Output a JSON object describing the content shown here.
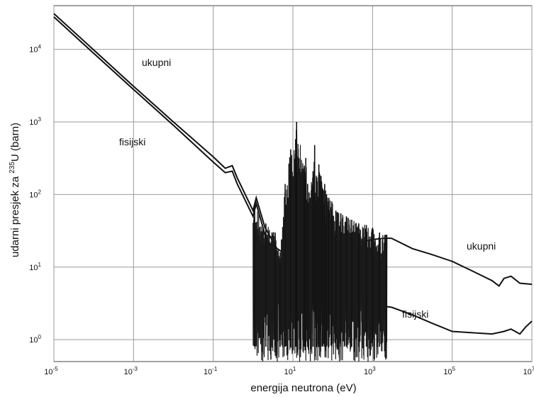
{
  "chart_data": {
    "type": "line",
    "title": "",
    "xlabel": "energija neutrona (eV)",
    "ylabel_prefix": "udarni presjek za ",
    "ylabel_isotope_mass": "235",
    "ylabel_suffix": "U (barn)",
    "x_scale": "log",
    "y_scale": "log",
    "xlim": [
      1e-05,
      10000000
    ],
    "ylim": [
      0.5,
      40000
    ],
    "grid": true,
    "legend": "none (inline annotations)",
    "x_ticks": [
      {
        "value": 1e-05,
        "base": "10",
        "exp": "-5"
      },
      {
        "value": 0.001,
        "base": "10",
        "exp": "-3"
      },
      {
        "value": 0.1,
        "base": "10",
        "exp": "-1"
      },
      {
        "value": 10,
        "base": "10",
        "exp": "1"
      },
      {
        "value": 1000,
        "base": "10",
        "exp": "3"
      },
      {
        "value": 100000,
        "base": "10",
        "exp": "5"
      },
      {
        "value": 10000000,
        "base": "10",
        "exp": "7"
      }
    ],
    "y_ticks": [
      {
        "value": 1,
        "base": "10",
        "exp": "0"
      },
      {
        "value": 10,
        "base": "10",
        "exp": "1"
      },
      {
        "value": 100,
        "base": "10",
        "exp": "2"
      },
      {
        "value": 1000,
        "base": "10",
        "exp": "3"
      },
      {
        "value": 10000,
        "base": "10",
        "exp": "4"
      }
    ],
    "annotations": {
      "upper_left": "ukupni",
      "lower_left": "fisijski",
      "upper_right": "ukupni",
      "lower_right": "fisijski"
    },
    "series": [
      {
        "name": "ukupni",
        "color": "#111111",
        "points": [
          [
            1e-05,
            31000
          ],
          [
            0.0001,
            9800
          ],
          [
            0.001,
            3100
          ],
          [
            0.01,
            1000
          ],
          [
            0.1,
            330
          ],
          [
            0.2,
            230
          ],
          [
            0.3,
            250
          ],
          [
            0.4,
            170
          ],
          [
            1,
            60
          ],
          [
            1.2,
            90
          ],
          [
            2,
            35
          ],
          [
            4,
            18
          ],
          [
            8,
            14
          ],
          [
            20,
            12
          ],
          [
            60,
            14
          ],
          [
            200,
            17
          ],
          [
            500,
            22
          ],
          [
            1000,
            24
          ],
          [
            2000,
            25
          ],
          [
            3000,
            25
          ],
          [
            10000,
            18
          ],
          [
            30000,
            15
          ],
          [
            100000,
            12
          ],
          [
            300000,
            9
          ],
          [
            1000000,
            6.5
          ],
          [
            1500000,
            5.5
          ],
          [
            2000000,
            7
          ],
          [
            3000000,
            7.5
          ],
          [
            5000000,
            6
          ],
          [
            10000000,
            5.8
          ]
        ]
      },
      {
        "name": "fisijski",
        "color": "#111111",
        "points": [
          [
            1e-05,
            28000
          ],
          [
            0.0001,
            8800
          ],
          [
            0.001,
            2800
          ],
          [
            0.01,
            900
          ],
          [
            0.1,
            280
          ],
          [
            0.2,
            200
          ],
          [
            0.3,
            210
          ],
          [
            0.4,
            140
          ],
          [
            1,
            50
          ],
          [
            1.2,
            75
          ],
          [
            2,
            28
          ],
          [
            4,
            10
          ],
          [
            8,
            6
          ],
          [
            20,
            5
          ],
          [
            60,
            4
          ],
          [
            200,
            3.5
          ],
          [
            500,
            3
          ],
          [
            1000,
            3
          ],
          [
            3000,
            2.8
          ],
          [
            10000,
            2.2
          ],
          [
            30000,
            1.7
          ],
          [
            100000,
            1.3
          ],
          [
            300000,
            1.25
          ],
          [
            1000000,
            1.2
          ],
          [
            2000000,
            1.3
          ],
          [
            3000000,
            1.4
          ],
          [
            5000000,
            1.2
          ],
          [
            7000000,
            1.5
          ],
          [
            10000000,
            1.8
          ]
        ]
      }
    ],
    "resonance_region": {
      "x_range": [
        1,
        2300
      ],
      "peaks": [
        [
          1.1,
          70
        ],
        [
          2.1,
          40
        ],
        [
          3.6,
          30
        ],
        [
          4.8,
          16
        ],
        [
          6.4,
          140
        ],
        [
          8.8,
          420
        ],
        [
          11.7,
          580
        ],
        [
          12.4,
          1000
        ],
        [
          19.3,
          250
        ],
        [
          21.1,
          320
        ],
        [
          23.5,
          140
        ],
        [
          32.1,
          210
        ],
        [
          35.2,
          480
        ],
        [
          39.5,
          160
        ],
        [
          44.9,
          260
        ],
        [
          50.9,
          180
        ],
        [
          56.5,
          120
        ],
        [
          62.8,
          140
        ],
        [
          70,
          100
        ],
        [
          80,
          90
        ],
        [
          95,
          80
        ],
        [
          120,
          60
        ],
        [
          160,
          55
        ],
        [
          220,
          50
        ],
        [
          300,
          45
        ],
        [
          450,
          40
        ],
        [
          700,
          38
        ],
        [
          1000,
          35
        ],
        [
          1500,
          30
        ],
        [
          2200,
          28
        ]
      ],
      "valley_min": 0.5
    }
  }
}
